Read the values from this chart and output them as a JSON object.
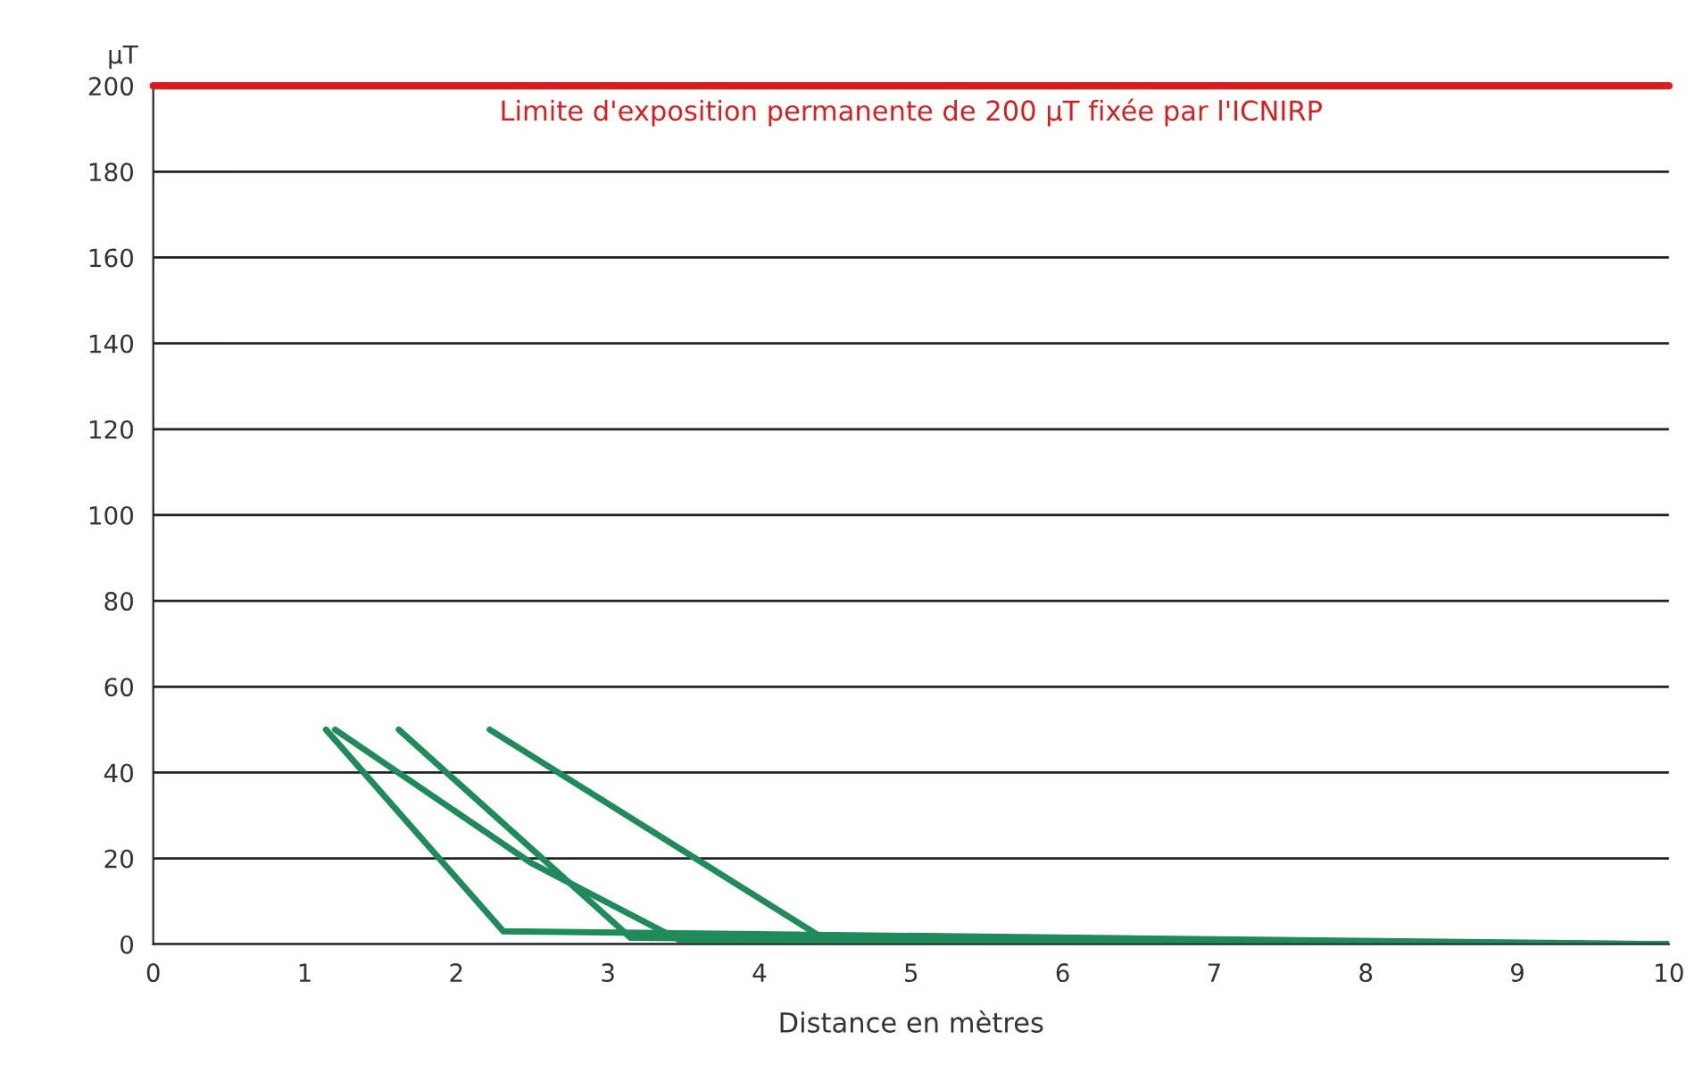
{
  "chart_data": {
    "type": "line",
    "xlabel": "Distance en mètres",
    "ylabel": "µT",
    "series": [
      {
        "color": "#1f8a5a",
        "x": [
          1.14,
          2.31,
          10
        ],
        "values": [
          50,
          3,
          0
        ]
      },
      {
        "color": "#1f8a5a",
        "x": [
          1.2,
          2.49,
          3.47,
          10
        ],
        "values": [
          50,
          19,
          1,
          0
        ]
      },
      {
        "color": "#1f8a5a",
        "x": [
          1.62,
          3.15,
          10
        ],
        "values": [
          50,
          1.5,
          0
        ]
      },
      {
        "color": "#1f8a5a",
        "x": [
          2.22,
          4.46,
          10
        ],
        "values": [
          50,
          0.5,
          0
        ]
      }
    ],
    "xlim": [
      0,
      10
    ],
    "xticks": [
      0,
      1,
      2,
      3,
      4,
      5,
      6,
      7,
      8,
      9,
      10
    ],
    "ylim": [
      0,
      200
    ],
    "yticks": [
      0,
      20,
      40,
      60,
      80,
      100,
      120,
      140,
      160,
      180,
      200
    ],
    "ref_lines": [
      {
        "axis": "y",
        "value": 200,
        "label": "Limite d'exposition permanente de 200 µT fixée par l'ICNIRP",
        "color": "#d42020"
      }
    ],
    "grid": "y",
    "legend": false,
    "line_style": "solid"
  }
}
